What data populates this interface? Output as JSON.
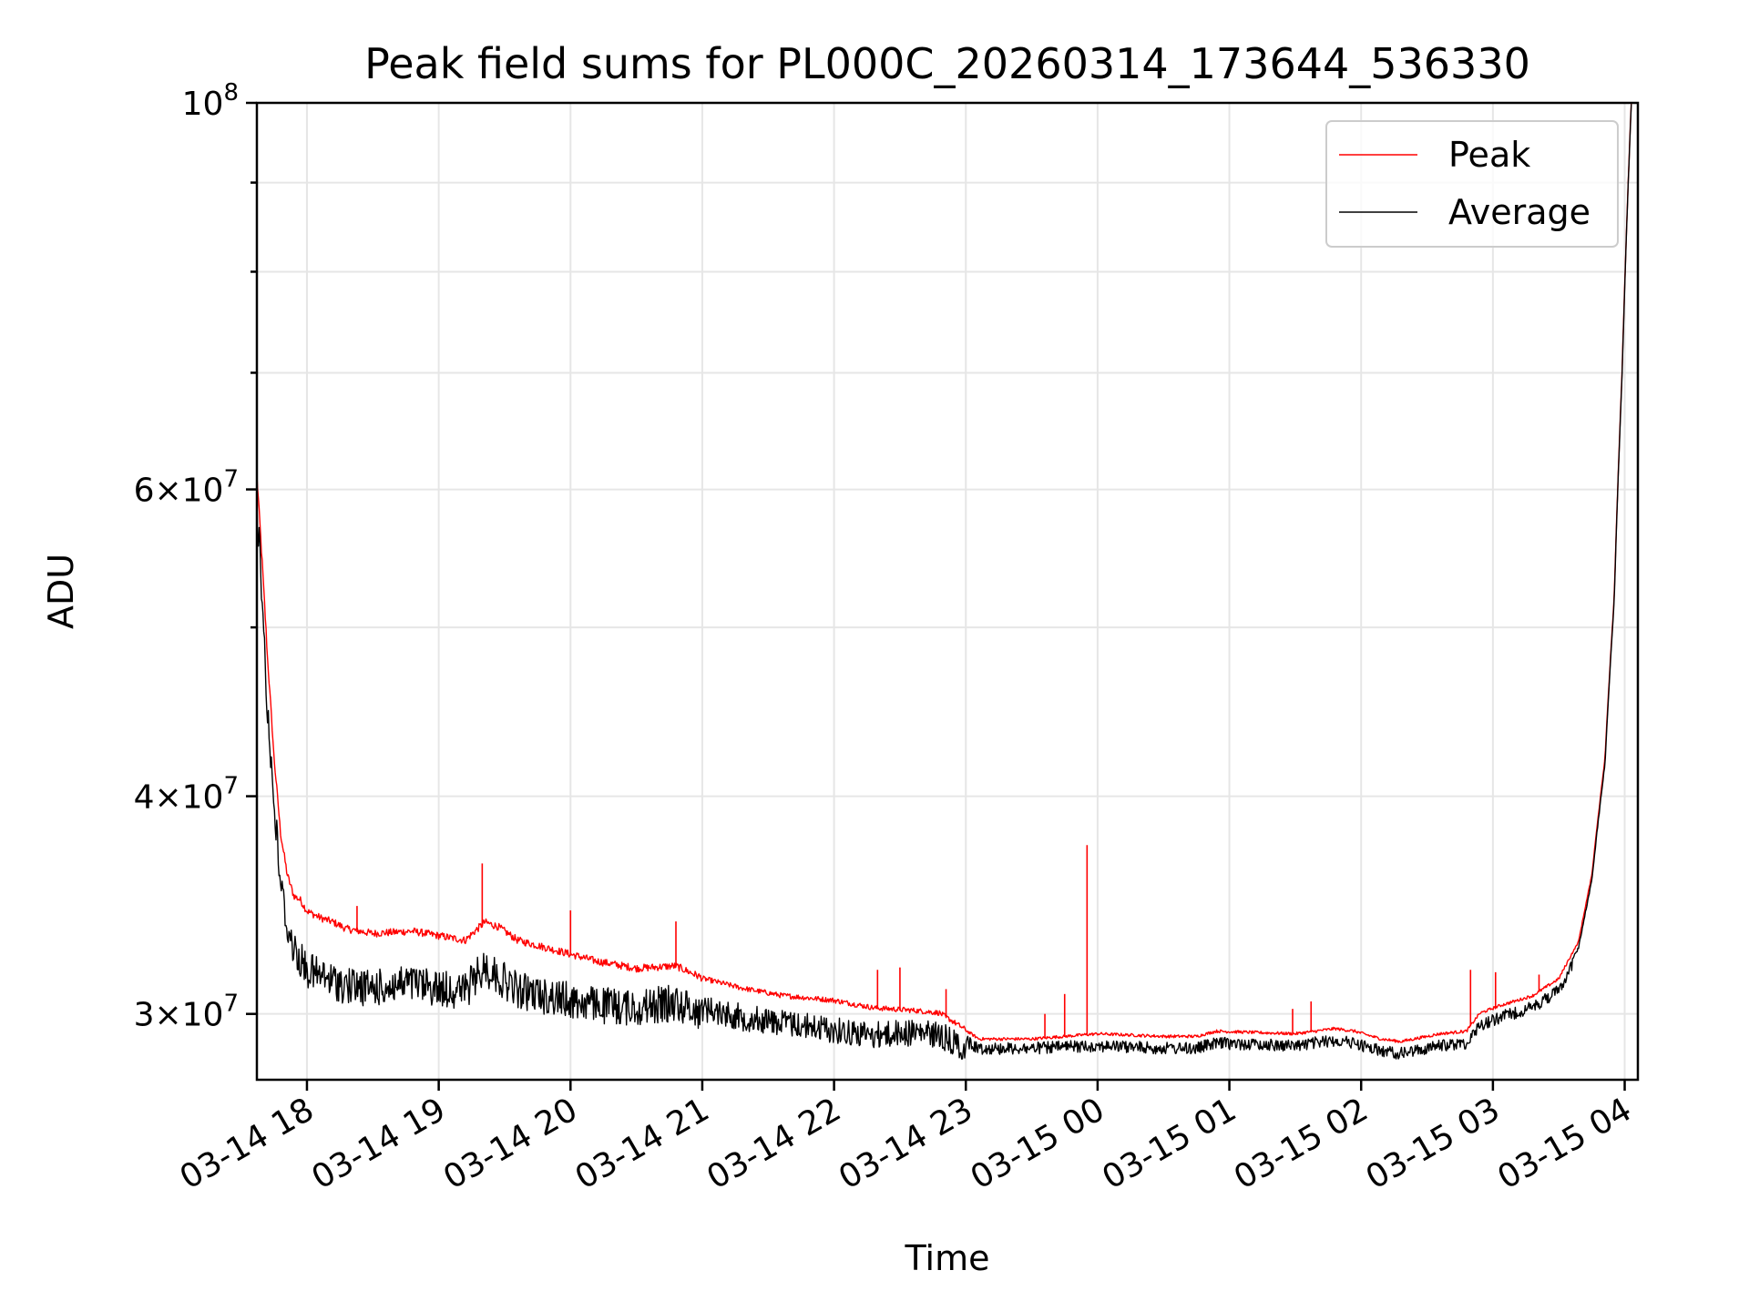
{
  "chart_data": {
    "type": "line",
    "title": "Peak field sums for PL000C_20260314_173644_536330",
    "xlabel": "Time",
    "ylabel": "ADU",
    "yscale": "log",
    "ylim": [
      27500000,
      100000000
    ],
    "xlim_hours": [
      -0.38,
      10.1
    ],
    "grid": true,
    "legend": "top-right",
    "x_ticks": [
      {
        "hour": 0,
        "label": "03-14 18"
      },
      {
        "hour": 1,
        "label": "03-14 19"
      },
      {
        "hour": 2,
        "label": "03-14 20"
      },
      {
        "hour": 3,
        "label": "03-14 21"
      },
      {
        "hour": 4,
        "label": "03-14 22"
      },
      {
        "hour": 5,
        "label": "03-14 23"
      },
      {
        "hour": 6,
        "label": "03-15 00"
      },
      {
        "hour": 7,
        "label": "03-15 01"
      },
      {
        "hour": 8,
        "label": "03-15 02"
      },
      {
        "hour": 9,
        "label": "03-15 03"
      },
      {
        "hour": 10,
        "label": "03-15 04"
      }
    ],
    "y_ticks": [
      {
        "value": 30000000,
        "mantissa": "3",
        "exp": "7"
      },
      {
        "value": 40000000,
        "mantissa": "4",
        "exp": "7"
      },
      {
        "value": 60000000,
        "mantissa": "6",
        "exp": "7"
      },
      {
        "value": 100000000,
        "mantissa": "",
        "exp": "8"
      }
    ],
    "y_minor_ticks": [
      50000000,
      70000000,
      80000000,
      90000000
    ],
    "x_unit": "hours after 03-14 18:00",
    "series": [
      {
        "name": "Peak",
        "color": "#ff0000",
        "x": [
          -0.38,
          -0.35,
          -0.3,
          -0.25,
          -0.2,
          -0.15,
          -0.1,
          -0.05,
          0,
          0.1,
          0.2,
          0.3,
          0.5,
          0.8,
          1,
          1.2,
          1.35,
          1.45,
          1.6,
          1.8,
          2,
          2.2,
          2.5,
          2.8,
          3,
          3.3,
          3.6,
          4,
          4.3,
          4.6,
          4.8,
          4.95,
          5.1,
          5.5,
          6,
          6.5,
          6.75,
          6.9,
          7.5,
          7.8,
          7.95,
          8.15,
          8.3,
          8.6,
          8.8,
          8.9,
          9.05,
          9.3,
          9.5,
          9.65,
          9.75,
          9.85,
          9.92,
          9.98,
          10.05
        ],
        "y": [
          61000000,
          56000000,
          48000000,
          42000000,
          38000000,
          36000000,
          35000000,
          34800000,
          34300000,
          34000000,
          33800000,
          33500000,
          33300000,
          33400000,
          33200000,
          33000000,
          33800000,
          33600000,
          33000000,
          32700000,
          32400000,
          32100000,
          31800000,
          31900000,
          31400000,
          31000000,
          30700000,
          30500000,
          30200000,
          30100000,
          30000000,
          29500000,
          29000000,
          29000000,
          29200000,
          29100000,
          29100000,
          29300000,
          29200000,
          29400000,
          29300000,
          29000000,
          28900000,
          29200000,
          29300000,
          30000000,
          30300000,
          30700000,
          31400000,
          33000000,
          36000000,
          42000000,
          52000000,
          70000000,
          100000000
        ]
      },
      {
        "name": "Average",
        "color": "#000000",
        "x": [
          -0.38,
          -0.35,
          -0.3,
          -0.25,
          -0.2,
          -0.15,
          -0.1,
          -0.05,
          0,
          0.1,
          0.2,
          0.3,
          0.5,
          0.8,
          1,
          1.2,
          1.35,
          1.45,
          1.6,
          1.8,
          2,
          2.2,
          2.5,
          2.8,
          3,
          3.3,
          3.6,
          4,
          4.3,
          4.6,
          4.8,
          4.95,
          5.1,
          5.5,
          6,
          6.5,
          6.75,
          6.9,
          7.5,
          7.8,
          7.95,
          8.15,
          8.3,
          8.6,
          8.8,
          8.9,
          9.05,
          9.3,
          9.5,
          9.65,
          9.75,
          9.85,
          9.92,
          9.98,
          10.05
        ],
        "y": [
          60000000,
          55000000,
          46000000,
          40500000,
          36500000,
          34500000,
          33500000,
          33000000,
          32600000,
          32300000,
          32100000,
          31900000,
          31800000,
          32000000,
          31800000,
          31700000,
          32700000,
          32300000,
          31700000,
          31500000,
          31300000,
          31100000,
          31000000,
          31200000,
          30800000,
          30400000,
          30200000,
          29900000,
          29700000,
          29800000,
          29700000,
          29300000,
          28900000,
          28900000,
          29000000,
          28900000,
          28900000,
          29100000,
          29000000,
          29200000,
          29100000,
          28800000,
          28700000,
          29000000,
          29100000,
          29800000,
          30100000,
          30500000,
          31200000,
          32800000,
          35800000,
          41800000,
          51800000,
          69800000,
          100000000
        ]
      }
    ],
    "spikes": [
      {
        "hour": 1.33,
        "value": 36600000
      },
      {
        "hour": 0.38,
        "value": 34600000
      },
      {
        "hour": 2,
        "value": 34400000
      },
      {
        "hour": 2.8,
        "value": 33900000
      },
      {
        "hour": 4.33,
        "value": 31800000
      },
      {
        "hour": 4.5,
        "value": 31900000
      },
      {
        "hour": 4.85,
        "value": 31000000
      },
      {
        "hour": 5.6,
        "value": 30000000
      },
      {
        "hour": 5.75,
        "value": 30800000
      },
      {
        "hour": 5.92,
        "value": 37500000
      },
      {
        "hour": 7.48,
        "value": 30200000
      },
      {
        "hour": 7.62,
        "value": 30500000
      },
      {
        "hour": 8.83,
        "value": 31800000
      },
      {
        "hour": 9.02,
        "value": 31700000
      },
      {
        "hour": 9.35,
        "value": 31600000
      }
    ]
  }
}
